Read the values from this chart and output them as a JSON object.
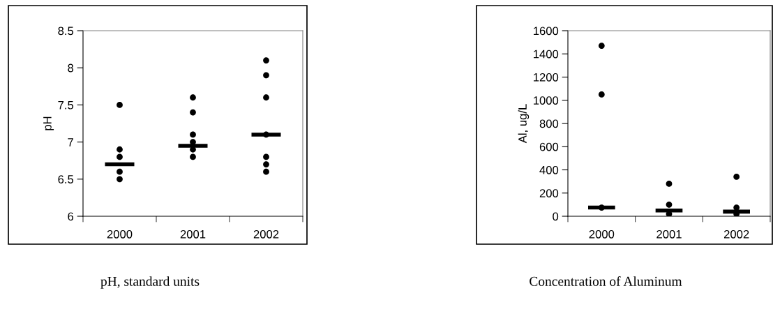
{
  "chart_data": [
    {
      "type": "scatter",
      "title": "pH, standard units",
      "ylabel": "pH",
      "xlim": [
        1999.5,
        2002.5
      ],
      "xticks": [
        2000,
        2001,
        2002
      ],
      "ylim": [
        6,
        8.5
      ],
      "yticks": [
        6,
        6.5,
        7,
        7.5,
        8,
        8.5
      ],
      "grid": false,
      "series": [
        {
          "marker": "circle",
          "color": "#000000",
          "x": [
            2000,
            2000,
            2000,
            2000,
            2000,
            2001,
            2001,
            2001,
            2001,
            2001,
            2001,
            2002,
            2002,
            2002,
            2002,
            2002,
            2002,
            2002
          ],
          "values": [
            7.5,
            6.9,
            6.8,
            6.6,
            6.5,
            7.6,
            7.4,
            7.1,
            7.0,
            6.9,
            6.8,
            8.1,
            7.9,
            7.6,
            7.1,
            6.8,
            6.7,
            6.6
          ]
        },
        {
          "type": "line",
          "color": "#000000",
          "x": [
            1999.8,
            2000.2
          ],
          "values": [
            6.7,
            6.7
          ]
        },
        {
          "type": "line",
          "color": "#000000",
          "x": [
            2000.8,
            2001.2
          ],
          "values": [
            6.95,
            6.95
          ]
        },
        {
          "type": "line",
          "color": "#000000",
          "x": [
            2001.8,
            2002.2
          ],
          "values": [
            7.1,
            7.1
          ]
        }
      ]
    },
    {
      "type": "scatter",
      "title": "Concentration of Aluminum",
      "ylabel": "Al, ug/L",
      "xlim": [
        1999.5,
        2002.5
      ],
      "xticks": [
        2000,
        2001,
        2002
      ],
      "ylim": [
        0,
        1600
      ],
      "yticks": [
        0,
        200,
        400,
        600,
        800,
        1000,
        1200,
        1400,
        1600
      ],
      "grid": false,
      "series": [
        {
          "marker": "circle",
          "color": "#000000",
          "x": [
            2000,
            2000,
            2000,
            2001,
            2001,
            2001,
            2002,
            2002,
            2002
          ],
          "values": [
            1470,
            1050,
            75,
            280,
            100,
            20,
            340,
            75,
            20
          ]
        },
        {
          "type": "line",
          "color": "#000000",
          "x": [
            1999.8,
            2000.2
          ],
          "values": [
            75,
            75
          ]
        },
        {
          "type": "line",
          "color": "#000000",
          "x": [
            2000.8,
            2001.2
          ],
          "values": [
            50,
            50
          ]
        },
        {
          "type": "line",
          "color": "#000000",
          "x": [
            2001.8,
            2002.2
          ],
          "values": [
            40,
            40
          ]
        }
      ]
    }
  ]
}
